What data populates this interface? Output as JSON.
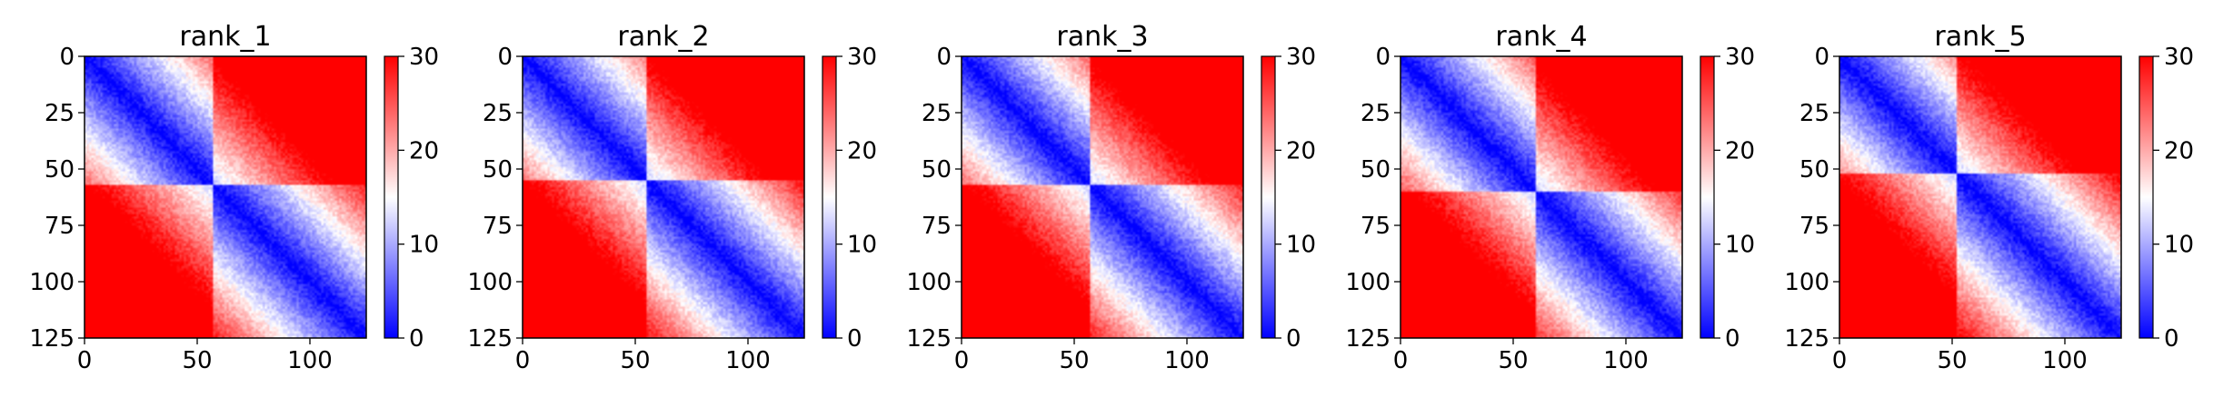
{
  "figure": {
    "panel_titles": [
      "rank_1",
      "rank_2",
      "rank_3",
      "rank_4",
      "rank_5"
    ]
  },
  "chart_data": [
    {
      "type": "heatmap",
      "title": "rank_1",
      "xlabel": "",
      "ylabel": "",
      "x_ticks": [
        0,
        50,
        100
      ],
      "y_ticks": [
        0,
        25,
        50,
        75,
        100,
        125
      ],
      "xlim": [
        0,
        125
      ],
      "ylim": [
        125,
        0
      ],
      "matrix_size": 125,
      "colormap": "bwr",
      "colorbar": {
        "range": [
          0,
          30
        ],
        "ticks": [
          0,
          10,
          20,
          30
        ]
      },
      "low_distance_domains": [
        [
          0,
          57
        ],
        [
          57,
          125
        ]
      ],
      "colors": {
        "low": "#0000ff",
        "mid": "#ffffff",
        "high": "#ff0000"
      }
    },
    {
      "type": "heatmap",
      "title": "rank_2",
      "xlabel": "",
      "ylabel": "",
      "x_ticks": [
        0,
        50,
        100
      ],
      "y_ticks": [
        0,
        25,
        50,
        75,
        100,
        125
      ],
      "xlim": [
        0,
        125
      ],
      "ylim": [
        125,
        0
      ],
      "matrix_size": 125,
      "colormap": "bwr",
      "colorbar": {
        "range": [
          0,
          30
        ],
        "ticks": [
          0,
          10,
          20,
          30
        ]
      },
      "low_distance_domains": [
        [
          0,
          55
        ],
        [
          55,
          125
        ]
      ],
      "colors": {
        "low": "#0000ff",
        "mid": "#ffffff",
        "high": "#ff0000"
      }
    },
    {
      "type": "heatmap",
      "title": "rank_3",
      "xlabel": "",
      "ylabel": "",
      "x_ticks": [
        0,
        50,
        100
      ],
      "y_ticks": [
        0,
        25,
        50,
        75,
        100,
        125
      ],
      "xlim": [
        0,
        125
      ],
      "ylim": [
        125,
        0
      ],
      "matrix_size": 125,
      "colormap": "bwr",
      "colorbar": {
        "range": [
          0,
          30
        ],
        "ticks": [
          0,
          10,
          20,
          30
        ]
      },
      "low_distance_domains": [
        [
          0,
          57
        ],
        [
          57,
          125
        ]
      ],
      "colors": {
        "low": "#0000ff",
        "mid": "#ffffff",
        "high": "#ff0000"
      }
    },
    {
      "type": "heatmap",
      "title": "rank_4",
      "xlabel": "",
      "ylabel": "",
      "x_ticks": [
        0,
        50,
        100
      ],
      "y_ticks": [
        0,
        25,
        50,
        75,
        100,
        125
      ],
      "xlim": [
        0,
        125
      ],
      "ylim": [
        125,
        0
      ],
      "matrix_size": 125,
      "colormap": "bwr",
      "colorbar": {
        "range": [
          0,
          30
        ],
        "ticks": [
          0,
          10,
          20,
          30
        ]
      },
      "low_distance_domains": [
        [
          0,
          60
        ],
        [
          60,
          125
        ]
      ],
      "colors": {
        "low": "#0000ff",
        "mid": "#ffffff",
        "high": "#ff0000"
      }
    },
    {
      "type": "heatmap",
      "title": "rank_5",
      "xlabel": "",
      "ylabel": "",
      "x_ticks": [
        0,
        50,
        100
      ],
      "y_ticks": [
        0,
        25,
        50,
        75,
        100,
        125
      ],
      "xlim": [
        0,
        125
      ],
      "ylim": [
        125,
        0
      ],
      "matrix_size": 125,
      "colormap": "bwr",
      "colorbar": {
        "range": [
          0,
          30
        ],
        "ticks": [
          0,
          10,
          20,
          30
        ]
      },
      "low_distance_domains": [
        [
          0,
          52
        ],
        [
          52,
          125
        ]
      ],
      "colors": {
        "low": "#0000ff",
        "mid": "#ffffff",
        "high": "#ff0000"
      }
    }
  ]
}
